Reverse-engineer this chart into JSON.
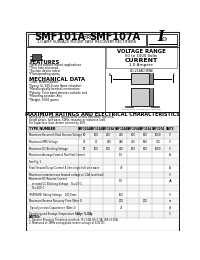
{
  "title_main": "SMF101A",
  "title_thru": "THRU",
  "title_end": "SMF107A",
  "subtitle": "1.0 AMP SURFACE MOUNT FAST RECOVERY RECTIFIERS",
  "voltage_range_title": "VOLTAGE RANGE",
  "voltage_range_val": "50 to 1000 Volts",
  "current_title": "CURRENT",
  "current_val": "1.0 Ampere",
  "features_title": "FEATURES",
  "features": [
    "*Ideal for surface mount applications",
    "*Thru hole also avail.",
    "*Suction device rated",
    "*Flameproofing epoxy"
  ],
  "mech_title": "MECHANICAL DATA",
  "mech": [
    "*Case: Molded plastic",
    "*Epoxy: UL 94V-0 rate flame retardant",
    "*Metallurgically bonded construction",
    "*Polarity: Color band denotes cathode end",
    "*Mounting position: Any",
    "*Weight: 0.002 grams"
  ],
  "table_title": "MAXIMUM RATINGS AND ELECTRICAL CHARACTERISTICS",
  "table_note1": "Rating at 25°C ambient temperature unless otherwise specified.",
  "table_note2": "Single phase, half wave, 60Hz, resistive or inductive load.",
  "table_note3": "For capacitive load, derate current by 20%.",
  "col_headers": [
    "SMF101A",
    "SMF102A",
    "SMF103A",
    "SMF104A",
    "SMF105A",
    "SMF106A",
    "SMF107A",
    "UNITS"
  ],
  "row_data": [
    {
      "label": "Maximum Recurrent Peak Reverse Voltage",
      "vals": [
        "50",
        "100",
        "200",
        "400",
        "600",
        "800",
        "1000",
        "V"
      ]
    },
    {
      "label": "Maximum RMS Voltage",
      "vals": [
        "35",
        "70",
        "140",
        "280",
        "420",
        "560",
        "700",
        "V"
      ]
    },
    {
      "label": "Maximum DC Blocking Voltage",
      "vals": [
        "50",
        "100",
        "200",
        "400",
        "600",
        "800",
        "1000",
        "V"
      ]
    },
    {
      "label": "Maximum Average Forward Rectified Current",
      "vals": [
        "",
        "",
        "",
        "1.0",
        "",
        "",
        "",
        "A"
      ]
    },
    {
      "label": "See Fig. 1",
      "vals": [
        "",
        "",
        "",
        "",
        "",
        "",
        "",
        ""
      ]
    },
    {
      "label": "Peak Forward Surge Current 8.3ms single half sine wave",
      "vals": [
        "",
        "",
        "",
        "30",
        "",
        "",
        "",
        "A"
      ]
    },
    {
      "label": "Maximum instantaneous forward voltage at 1.0A (overload)",
      "vals": [
        "",
        "",
        "",
        "",
        "",
        "",
        "",
        "V"
      ]
    },
    {
      "label": "Maximum DC Reverse Current\n    at rated DC Blocking Voltage    Ta=25°C",
      "vals": [
        "",
        "",
        "",
        "5.0",
        "",
        "",
        "",
        "μA"
      ]
    },
    {
      "label": "    Ta=100°C",
      "vals": [
        "",
        "",
        "",
        "",
        "",
        "",
        "",
        ""
      ]
    },
    {
      "label": "IFSM(RMS) Rating Voltage    100 Vrms",
      "vals": [
        "",
        "",
        "",
        "100",
        "",
        "",
        "",
        "V"
      ]
    },
    {
      "label": "Maximum Reverse Recovery Time (Note 1)",
      "vals": [
        "",
        "",
        "",
        "200",
        "",
        "200",
        "",
        "ns"
      ]
    },
    {
      "label": "Typical Junction Capacitance (Note 2)",
      "vals": [
        "",
        "",
        "",
        "75",
        "",
        "",
        "",
        "pF"
      ]
    },
    {
      "label": "Operating and Storage Temperature Range Tj, Tstg",
      "vals": [
        "-55 ~ +125",
        "",
        "",
        "",
        "",
        "",
        "",
        "°C"
      ]
    }
  ],
  "notes": [
    "NOTES:",
    "1. Reverse Recovery Time/test condition: IF=1.0A, IR=1.0A, IRR=0.25A",
    "2. Measured at 1MHz and applied reverse voltage of 4.0V DC"
  ],
  "bg_white": "#ffffff",
  "border_dark": "#222222",
  "border_mid": "#555555",
  "border_light": "#aaaaaa",
  "text_black": "#000000",
  "text_dark": "#111111",
  "shade_light": "#eeeeee"
}
